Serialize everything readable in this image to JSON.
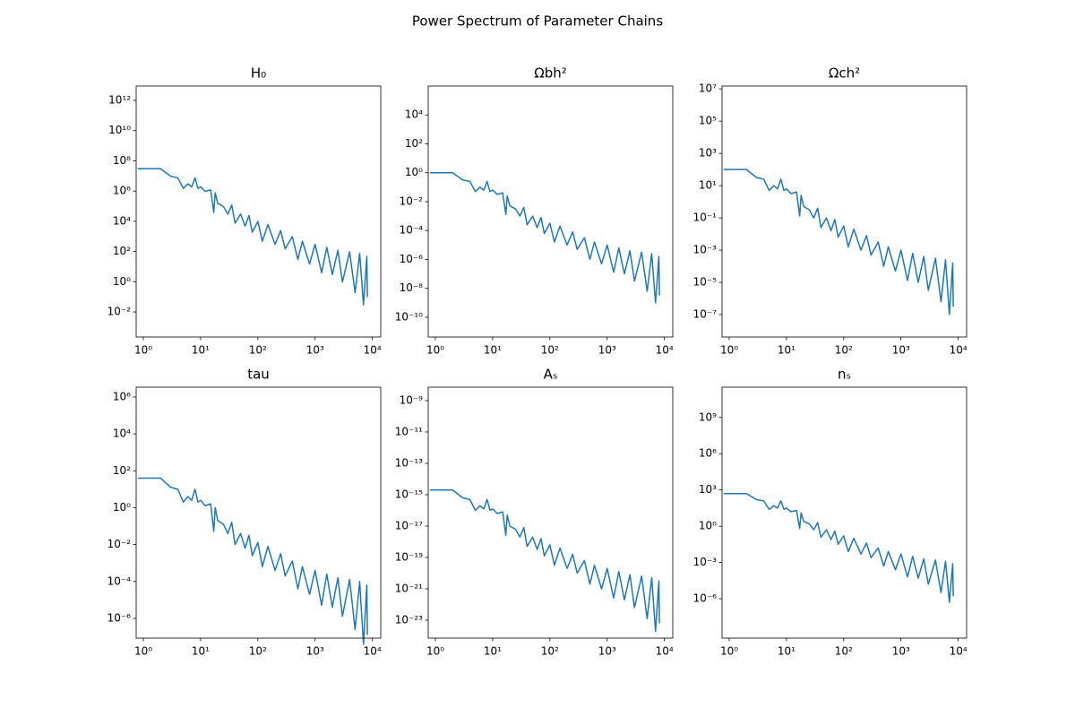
{
  "title": "Power Spectrum of Parameter Chains",
  "chart_data": [
    {
      "type": "line",
      "title": "H₀",
      "color": "#1f77b4",
      "log_x": true,
      "log_y": true,
      "x": [
        0.8,
        1,
        2,
        3,
        4,
        5,
        6,
        7,
        8,
        9,
        10,
        12,
        15,
        17,
        18,
        20,
        25,
        30,
        35,
        40,
        50,
        60,
        70,
        80,
        100,
        120,
        150,
        200,
        250,
        300,
        400,
        500,
        600,
        800,
        1000,
        1300,
        1600,
        2000,
        2500,
        3000,
        4000,
        5000,
        6000,
        7000,
        8000,
        8192
      ],
      "values": [
        30000000.0,
        30000000.0,
        30000000.0,
        9600000.0,
        7500000.0,
        1500000.0,
        3000000.0,
        1890000.0,
        7500000.0,
        1500000.0,
        1890000.0,
        960000.0,
        1200000.0,
        39000.0,
        750000.0,
        150000.0,
        96000.0,
        30000.0,
        120000.0,
        7500,
        30000.0,
        4800,
        24000.0,
        1890,
        9600,
        480,
        6000,
        300,
        2400,
        150,
        960,
        30,
        480,
        15,
        300,
        3.9,
        189,
        3,
        120,
        0.96,
        96,
        0.189,
        75,
        0.03,
        48,
        0.096
      ],
      "xlim": [
        0.75,
        14000
      ],
      "xticks": [
        {
          "value": 1,
          "label": "10⁰"
        },
        {
          "value": 10,
          "label": "10¹"
        },
        {
          "value": 100,
          "label": "10²"
        },
        {
          "value": 1000,
          "label": "10³"
        },
        {
          "value": 10000,
          "label": "10⁴"
        }
      ],
      "ylim": [
        0.00022,
        8900000000000.0
      ],
      "yticks": [
        {
          "value": 0.01,
          "label": "10⁻²"
        },
        {
          "value": 1,
          "label": "10⁰"
        },
        {
          "value": 100,
          "label": "10²"
        },
        {
          "value": 10000.0,
          "label": "10⁴"
        },
        {
          "value": 1000000.0,
          "label": "10⁶"
        },
        {
          "value": 100000000.0,
          "label": "10⁸"
        },
        {
          "value": 10000000000.0,
          "label": "10¹⁰"
        },
        {
          "value": 1000000000000.0,
          "label": "10¹²"
        }
      ]
    },
    {
      "type": "line",
      "title": "Ωbh²",
      "color": "#1f77b4",
      "log_x": true,
      "log_y": true,
      "x": [
        0.8,
        1,
        2,
        3,
        4,
        5,
        6,
        7,
        8,
        9,
        10,
        12,
        15,
        17,
        18,
        20,
        25,
        30,
        35,
        40,
        50,
        60,
        70,
        80,
        100,
        120,
        150,
        200,
        250,
        300,
        400,
        500,
        600,
        800,
        1000,
        1300,
        1600,
        2000,
        2500,
        3000,
        4000,
        5000,
        6000,
        7000,
        8000,
        8192
      ],
      "values": [
        1,
        1,
        1,
        0.32,
        0.25,
        0.05,
        0.1,
        0.063,
        0.25,
        0.05,
        0.063,
        0.032,
        0.04,
        0.0013,
        0.025,
        0.005,
        0.0032,
        0.001,
        0.004,
        0.00025,
        0.001,
        0.00016,
        0.0008,
        6.3e-05,
        0.00032,
        1.6e-05,
        0.0002,
        1e-05,
        8e-05,
        5e-06,
        3.2e-05,
        1e-06,
        1.6e-05,
        5e-07,
        1e-05,
        1.3e-07,
        6.3e-06,
        1e-07,
        4e-06,
        3.2e-08,
        3.2e-06,
        6.3e-09,
        2.5e-06,
        1e-09,
        1.6e-06,
        3.2e-09
      ],
      "xlim": [
        0.75,
        14000
      ],
      "xticks": [
        {
          "value": 1,
          "label": "10⁰"
        },
        {
          "value": 10,
          "label": "10¹"
        },
        {
          "value": 100,
          "label": "10²"
        },
        {
          "value": 1000,
          "label": "10³"
        },
        {
          "value": 10000,
          "label": "10⁴"
        }
      ],
      "ylim": [
        4.3e-12,
        1000000.0
      ],
      "yticks": [
        {
          "value": 1e-10,
          "label": "10⁻¹⁰"
        },
        {
          "value": 1e-08,
          "label": "10⁻⁸"
        },
        {
          "value": 1e-06,
          "label": "10⁻⁶"
        },
        {
          "value": 0.0001,
          "label": "10⁻⁴"
        },
        {
          "value": 0.01,
          "label": "10⁻²"
        },
        {
          "value": 1,
          "label": "10⁰"
        },
        {
          "value": 100,
          "label": "10²"
        },
        {
          "value": 10000.0,
          "label": "10⁴"
        }
      ]
    },
    {
      "type": "line",
      "title": "Ωch²",
      "color": "#1f77b4",
      "log_x": true,
      "log_y": true,
      "x": [
        0.8,
        1,
        2,
        3,
        4,
        5,
        6,
        7,
        8,
        9,
        10,
        12,
        15,
        17,
        18,
        20,
        25,
        30,
        35,
        40,
        50,
        60,
        70,
        80,
        100,
        120,
        150,
        200,
        250,
        300,
        400,
        500,
        600,
        800,
        1000,
        1300,
        1600,
        2000,
        2500,
        3000,
        4000,
        5000,
        6000,
        7000,
        8000,
        8192
      ],
      "values": [
        100,
        100,
        100,
        32,
        25,
        5,
        10,
        6.3,
        25,
        5,
        6.3,
        3.2,
        4,
        0.13,
        2.5,
        0.5,
        0.32,
        0.1,
        0.4,
        0.025,
        0.1,
        0.016,
        0.08,
        0.0063,
        0.032,
        0.0016,
        0.02,
        0.001,
        0.008,
        0.0005,
        0.0032,
        0.0001,
        0.0016,
        5e-05,
        0.001,
        1.3e-05,
        0.00063,
        1e-05,
        0.0004,
        3.2e-06,
        0.00032,
        6.3e-07,
        0.00025,
        1e-07,
        0.00016,
        3.2e-07
      ],
      "xlim": [
        0.75,
        14000
      ],
      "xticks": [
        {
          "value": 1,
          "label": "10⁰"
        },
        {
          "value": 10,
          "label": "10¹"
        },
        {
          "value": 100,
          "label": "10²"
        },
        {
          "value": 1000,
          "label": "10³"
        },
        {
          "value": 10000,
          "label": "10⁴"
        }
      ],
      "ylim": [
        4.1e-09,
        15000000.0
      ],
      "yticks": [
        {
          "value": 1e-07,
          "label": "10⁻⁷"
        },
        {
          "value": 1e-05,
          "label": "10⁻⁵"
        },
        {
          "value": 0.001,
          "label": "10⁻³"
        },
        {
          "value": 0.1,
          "label": "10⁻¹"
        },
        {
          "value": 10,
          "label": "10¹"
        },
        {
          "value": 1000,
          "label": "10³"
        },
        {
          "value": 100000.0,
          "label": "10⁵"
        },
        {
          "value": 10000000.0,
          "label": "10⁷"
        }
      ]
    },
    {
      "type": "line",
      "title": "tau",
      "color": "#1f77b4",
      "log_x": true,
      "log_y": true,
      "x": [
        0.8,
        1,
        2,
        3,
        4,
        5,
        6,
        7,
        8,
        9,
        10,
        12,
        15,
        17,
        18,
        20,
        25,
        30,
        35,
        40,
        50,
        60,
        70,
        80,
        100,
        120,
        150,
        200,
        250,
        300,
        400,
        500,
        600,
        800,
        1000,
        1300,
        1600,
        2000,
        2500,
        3000,
        4000,
        5000,
        6000,
        7000,
        8000,
        8192
      ],
      "values": [
        40,
        40,
        40,
        12.8,
        10,
        2,
        4,
        2.52,
        10,
        2,
        2.52,
        1.28,
        1.6,
        0.052,
        1,
        0.2,
        0.128,
        0.04,
        0.16,
        0.01,
        0.04,
        0.0064,
        0.032,
        0.00252,
        0.0128,
        0.00064,
        0.008,
        0.0004,
        0.0032,
        0.0002,
        0.00128,
        4e-05,
        0.00064,
        2e-05,
        0.0004,
        5.2e-06,
        0.000252,
        4e-06,
        0.00016,
        1.28e-06,
        0.000128,
        2.52e-07,
        0.0001,
        4e-08,
        6.4e-05,
        1.28e-07
      ],
      "xlim": [
        0.75,
        14000
      ],
      "xticks": [
        {
          "value": 1,
          "label": "10⁰"
        },
        {
          "value": 10,
          "label": "10¹"
        },
        {
          "value": 100,
          "label": "10²"
        },
        {
          "value": 1000,
          "label": "10³"
        },
        {
          "value": 10000,
          "label": "10⁴"
        }
      ],
      "ylim": [
        8.5e-08,
        3400000.0
      ],
      "yticks": [
        {
          "value": 1e-06,
          "label": "10⁻⁶"
        },
        {
          "value": 0.0001,
          "label": "10⁻⁴"
        },
        {
          "value": 0.01,
          "label": "10⁻²"
        },
        {
          "value": 1,
          "label": "10⁰"
        },
        {
          "value": 100,
          "label": "10²"
        },
        {
          "value": 10000.0,
          "label": "10⁴"
        },
        {
          "value": 1000000.0,
          "label": "10⁶"
        }
      ]
    },
    {
      "type": "line",
      "title": "Aₛ",
      "color": "#1f77b4",
      "log_x": true,
      "log_y": true,
      "x": [
        0.8,
        1,
        2,
        3,
        4,
        5,
        6,
        7,
        8,
        9,
        10,
        12,
        15,
        17,
        18,
        20,
        25,
        30,
        35,
        40,
        50,
        60,
        70,
        80,
        100,
        120,
        150,
        200,
        250,
        300,
        400,
        500,
        600,
        800,
        1000,
        1300,
        1600,
        2000,
        2500,
        3000,
        4000,
        5000,
        6000,
        7000,
        8000,
        8192
      ],
      "values": [
        2e-15,
        2e-15,
        2e-15,
        6.4e-16,
        5e-16,
        1e-16,
        2e-16,
        1.26e-16,
        5e-16,
        1e-16,
        1.26e-16,
        6.4e-17,
        8e-17,
        2.6e-18,
        5e-17,
        1e-17,
        6.4e-18,
        2e-18,
        8e-18,
        5e-19,
        2e-18,
        3.2e-19,
        1.6e-18,
        1.26e-19,
        6.4e-19,
        3.2e-20,
        4e-19,
        2e-20,
        1.6e-19,
        1e-20,
        6.4e-20,
        2e-21,
        3.2e-20,
        1e-21,
        2e-20,
        2.6e-22,
        1.26e-20,
        2e-22,
        8e-21,
        6.4e-23,
        6.4e-21,
        1.26e-23,
        5e-21,
        2e-24,
        3.2e-21,
        6.4e-24
      ],
      "xlim": [
        0.75,
        14000
      ],
      "xticks": [
        {
          "value": 1,
          "label": "10⁰"
        },
        {
          "value": 10,
          "label": "10¹"
        },
        {
          "value": 100,
          "label": "10²"
        },
        {
          "value": 1000,
          "label": "10³"
        },
        {
          "value": 10000,
          "label": "10⁴"
        }
      ],
      "ylim": [
        7.2e-25,
        7.2e-09
      ],
      "yticks": [
        {
          "value": 1e-23,
          "label": "10⁻²³"
        },
        {
          "value": 1e-21,
          "label": "10⁻²¹"
        },
        {
          "value": 1e-19,
          "label": "10⁻¹⁹"
        },
        {
          "value": 1e-17,
          "label": "10⁻¹⁷"
        },
        {
          "value": 1e-15,
          "label": "10⁻¹⁵"
        },
        {
          "value": 1e-13,
          "label": "10⁻¹³"
        },
        {
          "value": 1e-11,
          "label": "10⁻¹¹"
        },
        {
          "value": 1e-09,
          "label": "10⁻⁹"
        }
      ]
    },
    {
      "type": "line",
      "title": "nₛ",
      "color": "#1f77b4",
      "log_x": true,
      "log_y": true,
      "x": [
        0.8,
        1,
        2,
        3,
        4,
        5,
        6,
        7,
        8,
        9,
        10,
        12,
        15,
        17,
        18,
        20,
        25,
        30,
        35,
        40,
        50,
        60,
        70,
        80,
        100,
        120,
        150,
        200,
        250,
        300,
        400,
        500,
        600,
        800,
        1000,
        1300,
        1600,
        2000,
        2500,
        3000,
        4000,
        5000,
        6000,
        7000,
        8000,
        8192
      ],
      "values": [
        500,
        500,
        500,
        160,
        125,
        25,
        50,
        31.5,
        125,
        25,
        31.5,
        16,
        20,
        0.65,
        12.5,
        2.5,
        1.6,
        0.5,
        2,
        0.125,
        0.5,
        0.08,
        0.4,
        0.0315,
        0.16,
        0.008,
        0.1,
        0.005,
        0.04,
        0.0025,
        0.016,
        0.0005,
        0.008,
        0.00025,
        0.005,
        6.5e-05,
        0.00315,
        5e-05,
        0.002,
        1.6e-05,
        0.0016,
        3.15e-06,
        0.00125,
        5e-07,
        0.0008,
        1.6e-06
      ],
      "xlim": [
        0.75,
        14000
      ],
      "xticks": [
        {
          "value": 1,
          "label": "10⁰"
        },
        {
          "value": 10,
          "label": "10¹"
        },
        {
          "value": 100,
          "label": "10²"
        },
        {
          "value": 1000,
          "label": "10³"
        },
        {
          "value": 10000,
          "label": "10⁴"
        }
      ],
      "ylim": [
        5.5e-10,
        320000000000.0
      ],
      "yticks": [
        {
          "value": 1e-06,
          "label": "10⁻⁶"
        },
        {
          "value": 0.001,
          "label": "10⁻³"
        },
        {
          "value": 1,
          "label": "10⁰"
        },
        {
          "value": 1000,
          "label": "10³"
        },
        {
          "value": 1000000.0,
          "label": "10⁶"
        },
        {
          "value": 1000000000.0,
          "label": "10⁹"
        }
      ]
    }
  ]
}
